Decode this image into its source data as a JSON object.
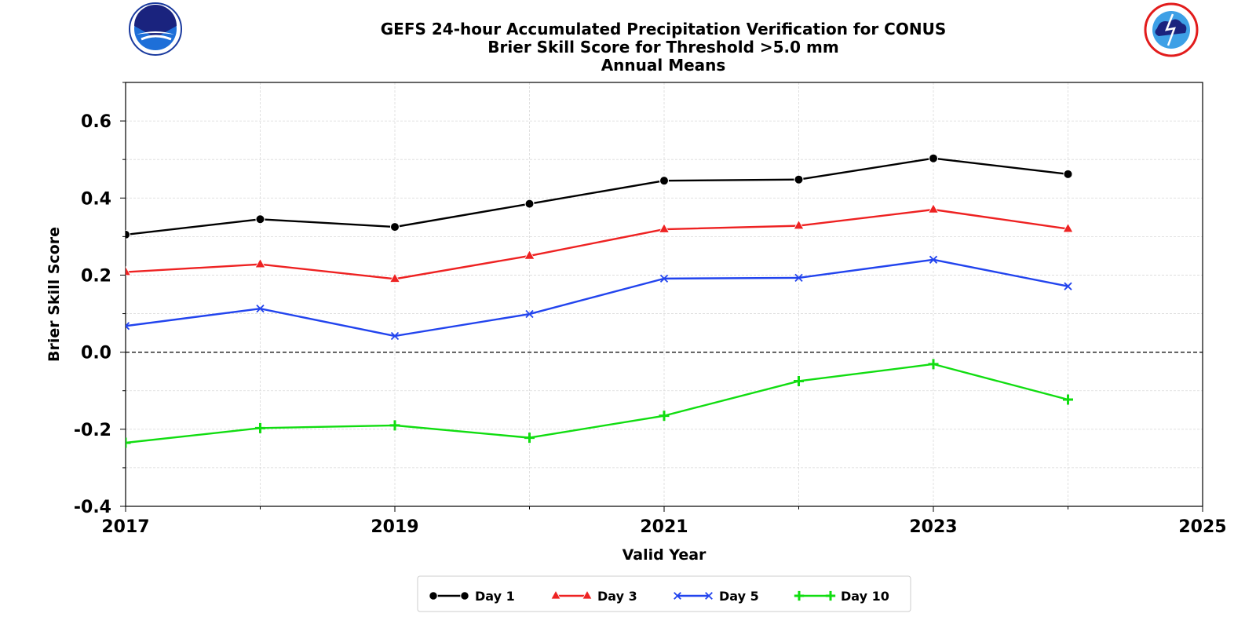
{
  "chart_data": {
    "type": "line",
    "title_lines": [
      "GEFS 24-hour Accumulated Precipitation Verification for CONUS",
      "Brier Skill Score for Threshold >5.0 mm",
      "Annual Means"
    ],
    "xlabel": "Valid Year",
    "ylabel": "Brier Skill Score",
    "xlim": [
      2017,
      2025
    ],
    "ylim": [
      -0.4,
      0.7
    ],
    "xticks": [
      2017,
      2019,
      2021,
      2023,
      2025
    ],
    "xtick_labels": [
      "2017",
      "2019",
      "2021",
      "2023",
      "2025"
    ],
    "yticks": [
      -0.4,
      -0.2,
      0.0,
      0.2,
      0.4,
      0.6
    ],
    "ytick_labels": [
      "-0.4",
      "-0.2",
      "0.0",
      "0.2",
      "0.4",
      "0.6"
    ],
    "grid": true,
    "zero_reference_line": true,
    "legend_position": "bottom-center",
    "x": [
      2017,
      2018,
      2019,
      2020,
      2021,
      2022,
      2023,
      2024
    ],
    "series": [
      {
        "name": "Day 1",
        "color": "#000000",
        "marker": "circle",
        "values": [
          0.305,
          0.345,
          0.325,
          0.385,
          0.445,
          0.448,
          0.503,
          0.462
        ]
      },
      {
        "name": "Day 3",
        "color": "#ee2222",
        "marker": "triangle",
        "values": [
          0.208,
          0.228,
          0.19,
          0.25,
          0.319,
          0.328,
          0.37,
          0.32
        ]
      },
      {
        "name": "Day 5",
        "color": "#2244ee",
        "marker": "x",
        "values": [
          0.068,
          0.113,
          0.042,
          0.099,
          0.191,
          0.193,
          0.24,
          0.171
        ]
      },
      {
        "name": "Day 10",
        "color": "#11dd11",
        "marker": "plus",
        "values": [
          -0.235,
          -0.197,
          -0.19,
          -0.222,
          -0.165,
          -0.075,
          -0.031,
          -0.123
        ]
      }
    ]
  },
  "logos": {
    "left": "noaa-logo",
    "right": "nws-logo"
  }
}
